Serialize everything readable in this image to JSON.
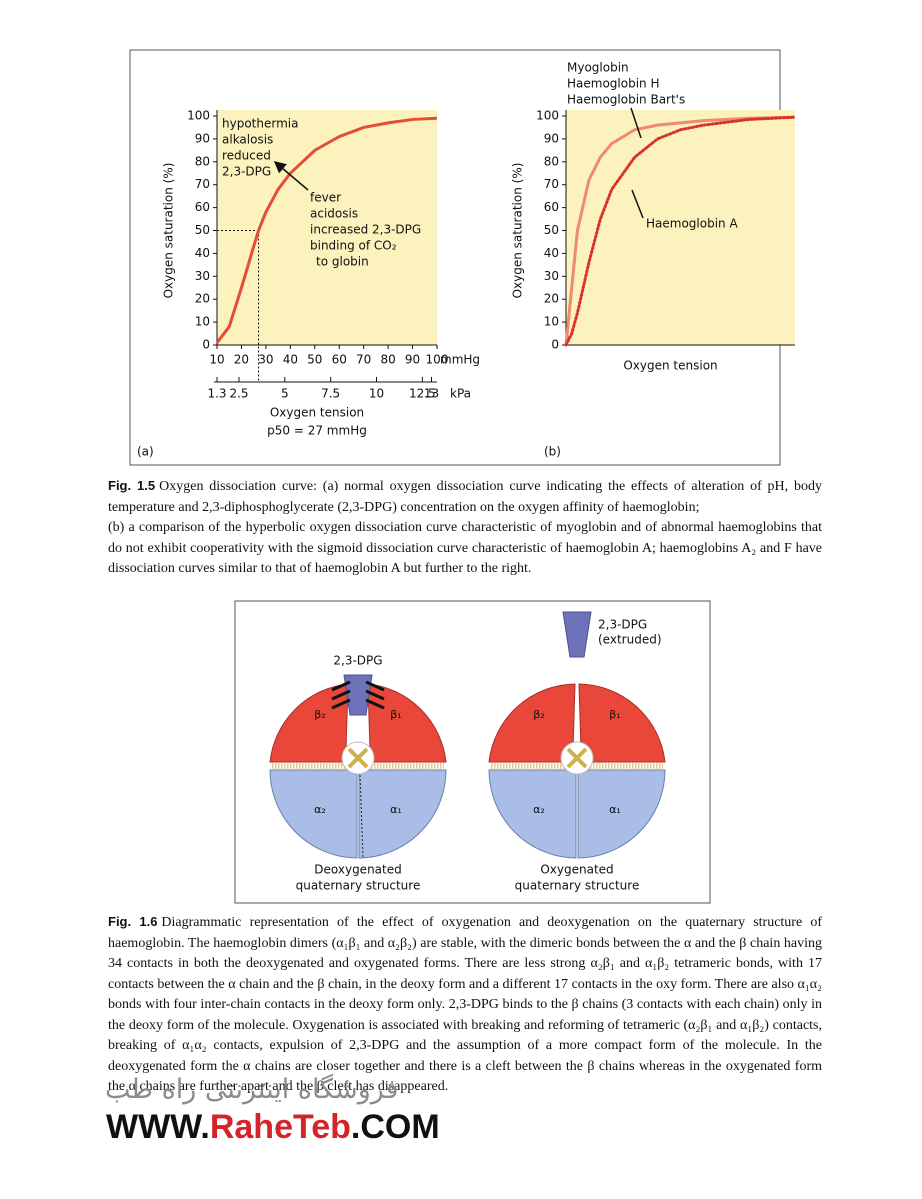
{
  "chart_data": [
    {
      "type": "line",
      "panel": "(a)",
      "ylabel": "Oxygen saturation (%)",
      "xlabel": "Oxygen tension",
      "xunit": "mmHg",
      "x2unit": "kPa",
      "note": "p50 = 27 mmHg",
      "background": "#fcf2bd",
      "x": [
        10,
        15,
        20,
        25,
        27,
        30,
        35,
        40,
        50,
        60,
        70,
        80,
        90,
        100
      ],
      "series": [
        {
          "color": "#e44d38",
          "dash": "solid",
          "values": [
            1,
            8,
            25,
            43,
            50,
            58,
            68,
            75,
            85,
            91,
            95,
            97,
            98.5,
            99
          ]
        }
      ],
      "xlim": [
        10,
        100
      ],
      "xticks": [
        10,
        20,
        30,
        40,
        50,
        60,
        70,
        80,
        90,
        100
      ],
      "x2lim": [
        1.3,
        13.3
      ],
      "x2ticks": [
        1.3,
        2.5,
        5,
        7.5,
        10,
        12.5,
        13
      ],
      "ylim": [
        0,
        100
      ],
      "yticks": [
        0,
        10,
        20,
        30,
        40,
        50,
        60,
        70,
        80,
        90,
        100
      ],
      "reference": {
        "x": 27,
        "y": 50
      },
      "annotations": [
        [
          "hypothermia",
          "alkalosis",
          "reduced",
          "2,3-DPG"
        ],
        [
          "fever",
          "acidosis",
          "increased 2,3-DPG",
          "binding of CO₂",
          "to globin"
        ]
      ]
    },
    {
      "type": "line",
      "panel": "(b)",
      "ylabel": "Oxygen saturation (%)",
      "xlabel": "Oxygen tension",
      "background": "#fcf2bd",
      "x": [
        0,
        0.25,
        0.5,
        1,
        1.5,
        2,
        3,
        4,
        5,
        6,
        8,
        10
      ],
      "series": [
        {
          "labels": [
            "Myoglobin",
            "Haemoglobin H",
            "Haemoglobin Bart's"
          ],
          "color": "#ef8a70",
          "dash": "solid",
          "values": [
            0,
            25,
            50,
            72,
            82,
            88,
            94,
            96,
            97,
            98,
            99,
            99.5
          ]
        },
        {
          "name": "Haemoglobin A",
          "color": "#d8322a",
          "dash": "dotted",
          "values": [
            0,
            5,
            14,
            36,
            55,
            68,
            82,
            90,
            94,
            96,
            98.5,
            99.5
          ]
        }
      ],
      "xlim": [
        0,
        10
      ],
      "ylim": [
        0,
        100
      ],
      "yticks": [
        0,
        10,
        20,
        30,
        40,
        50,
        60,
        70,
        80,
        90,
        100
      ]
    }
  ],
  "figures": [
    {
      "label": "Fig. 1.5",
      "text": [
        "Oxygen dissociation curve: (a) normal oxygen dissociation curve indicating the effects of alteration of pH, body temperature and 2,3-diphosphoglycerate (2,3-DPG) concentration on the oxygen affinity of haemoglobin;",
        "(b) a comparison of the hyperbolic oxygen dissociation curve characteristic of myoglobin and of abnormal haemoglobins that do not exhibit cooperativity with the sigmoid dissociation curve characteristic of haemoglobin A; haemoglobins A₂ and F have dissociation curves similar to that of haemoglobin A but further to the right."
      ]
    },
    {
      "label": "Fig. 1.6",
      "text": [
        "Diagrammatic representation of the effect of oxygenation and deoxygenation on the quaternary structure of haemoglobin. The haemoglobin dimers (α₁β₁ and α₂β₂) are stable, with the dimeric bonds between the α and the β chain having 34 contacts in both the deoxygenated and oxygenated forms. There are less strong α₂β₁ and α₁β₂ tetrameric bonds, with 17 contacts between the α chain and the β chain, in the deoxy form and a different 17 contacts in the oxy form. There are also α₁α₂ bonds with four inter-chain contacts in the deoxy form only. 2,3-DPG binds to the β chains (3 contacts with each chain) only in the deoxy form of the molecule. Oxygenation is associated with breaking and reforming of tetrameric (α₂β₁ and α₁β₂) contacts, breaking of α₁α₂ contacts, expulsion of 2,3-DPG and the assumption of a more compact form of the molecule. In the deoxygenated form the α chains are closer together and there is a cleft between the β chains whereas in the oxygenated form the α chains are further apart and the β cleft has disappeared."
      ]
    }
  ],
  "diagram": {
    "panels": [
      {
        "chains": [
          "β₂",
          "β₁",
          "α₂",
          "α₁"
        ],
        "dpg": [
          "2,3-DPG"
        ],
        "caption": [
          "Deoxygenated",
          "quaternary structure"
        ]
      },
      {
        "chains": [
          "β₂",
          "β₁",
          "α₂",
          "α₁"
        ],
        "dpg": [
          "2,3-DPG",
          "(extruded)"
        ],
        "caption": [
          "Oxygenated",
          "quaternary structure"
        ]
      }
    ]
  },
  "watermark": {
    "persian": "فروشگاه اینترنتی راه طب",
    "site": [
      "WWW.",
      "RaheTeb",
      ".COM"
    ]
  }
}
